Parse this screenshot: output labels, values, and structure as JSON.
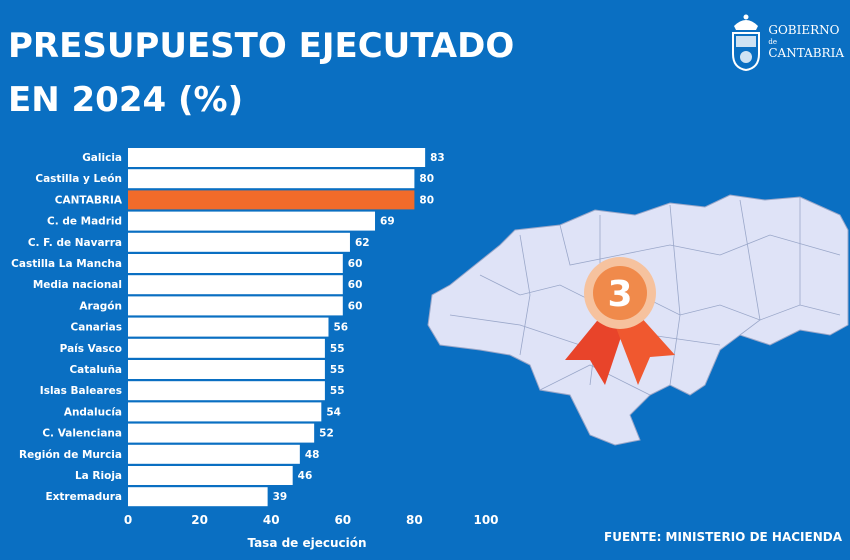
{
  "header": {
    "title_line1": "PRESUPUESTO EJECUTADO",
    "title_line2": "EN 2024 (%)"
  },
  "logo": {
    "line1": "GOBIERNO",
    "line2": "de",
    "line3": "CANTABRIA"
  },
  "source": "FUENTE: MINISTERIO DE HACIENDA",
  "badge": {
    "rank": "3"
  },
  "colors": {
    "background": "#0a6fc2",
    "bar": "#ffffff",
    "highlight": "#f26b2a",
    "map": "#dfe3f7"
  },
  "chart_data": {
    "type": "bar",
    "orientation": "horizontal",
    "categories": [
      "Galicia",
      "Castilla y León",
      "CANTABRIA",
      "C. de Madrid",
      "C. F. de Navarra",
      "Castilla La Mancha",
      "Media nacional",
      "Aragón",
      "Canarias",
      "País Vasco",
      "Cataluña",
      "Islas Baleares",
      "Andalucía",
      "C. Valenciana",
      "Región de Murcia",
      "La Rioja",
      "Extremadura"
    ],
    "values": [
      83,
      80,
      80,
      69,
      62,
      60,
      60,
      60,
      56,
      55,
      55,
      55,
      54,
      52,
      48,
      46,
      39
    ],
    "highlight": "CANTABRIA",
    "xlabel": "Tasa de ejecución",
    "xlim": [
      0,
      100
    ],
    "xticks": [
      0,
      20,
      40,
      60,
      80,
      100
    ],
    "data_labels": true,
    "grid": false
  }
}
